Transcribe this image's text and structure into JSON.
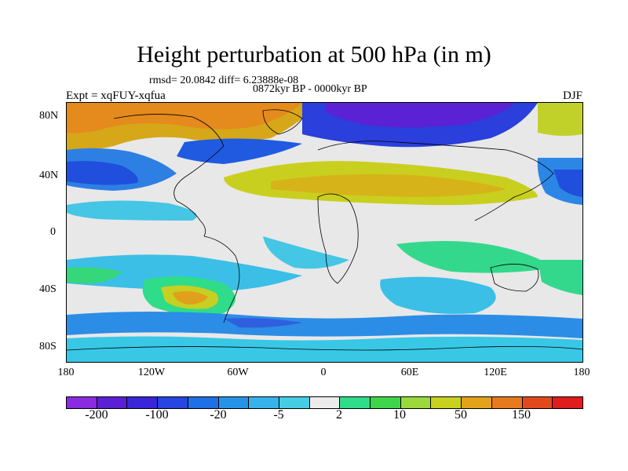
{
  "title": "Height perturbation at 500 hPa (in m)",
  "rmsd_text": "rmsd= 20.0842 diff= 6.23888e-08",
  "period_text": "0872kyr BP - 0000kyr BP",
  "expt_text": "Expt = xqFUY-xqfua",
  "season_text": "DJF",
  "axes": {
    "y_ticks": [
      "80N",
      "40N",
      "0",
      "40S",
      "80S"
    ],
    "x_ticks": [
      "180",
      "120W",
      "60W",
      "0",
      "60E",
      "120E",
      "180"
    ]
  },
  "colorbar": {
    "colors": [
      "#8a2be2",
      "#5b1fd6",
      "#3a26d9",
      "#2745e0",
      "#1f6fe6",
      "#2594e8",
      "#35b3ea",
      "#45cde4",
      "#ececec",
      "#2fdc8a",
      "#3fd54a",
      "#9bd93a",
      "#c9d11f",
      "#e1a31a",
      "#e67a1c",
      "#e24a1e",
      "#e01c1c"
    ],
    "labels": [
      "-200",
      "-100",
      "-20",
      "-5",
      "2",
      "10",
      "50",
      "150"
    ]
  }
}
